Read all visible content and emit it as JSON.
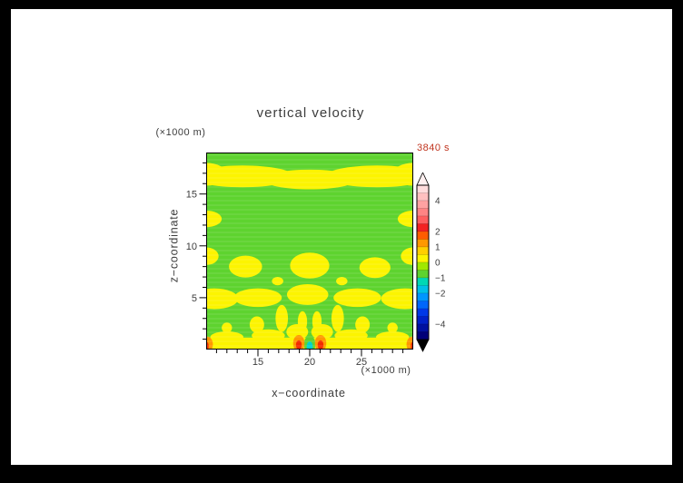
{
  "chart_data": {
    "type": "heatmap",
    "subtype": "filled-contour",
    "title": "vertical velocity",
    "time_label": "3840 s",
    "xlabel": "x−coordinate",
    "ylabel": "z−coordinate",
    "x_unit_label": "(×1000 m)",
    "y_unit_label": "(×1000 m)",
    "x_range": [
      10,
      30
    ],
    "z_range": [
      0,
      19
    ],
    "x_ticks": [
      15,
      20,
      25
    ],
    "z_ticks": [
      5,
      10,
      15
    ],
    "grid": "faint light horizontal raster lines",
    "background_color": "#5ed32f",
    "background_level": "-1 to 0",
    "palette": {
      "y": "#fcf400",
      "g": "#5ed32f",
      "o": "#ff9800",
      "r": "#f22c00",
      "c": "#00d2cc"
    },
    "levels": {
      "y": "0 to 1",
      "g": "-1 to 0",
      "o": "1 to 2",
      "r": "2 to 3",
      "c": "-2 to -1"
    },
    "regions": [
      [
        "e",
        13.5,
        16.7,
        5.0,
        1.05,
        "y"
      ],
      [
        "e",
        20.0,
        16.4,
        4.5,
        0.95,
        "y"
      ],
      [
        "e",
        26.5,
        16.7,
        5.0,
        1.05,
        "y"
      ],
      [
        "e",
        10.0,
        16.9,
        2.0,
        1.1,
        "y"
      ],
      [
        "e",
        30.0,
        16.9,
        2.0,
        1.1,
        "y"
      ],
      [
        "e",
        10.0,
        12.6,
        1.5,
        0.8,
        "y"
      ],
      [
        "e",
        30.0,
        12.6,
        1.5,
        0.8,
        "y"
      ],
      [
        "e",
        13.8,
        8.0,
        1.6,
        1.05,
        "y"
      ],
      [
        "e",
        20.0,
        8.1,
        1.9,
        1.25,
        "y"
      ],
      [
        "e",
        26.3,
        7.9,
        1.5,
        1.0,
        "y"
      ],
      [
        "e",
        10.0,
        9.0,
        1.2,
        0.85,
        "y"
      ],
      [
        "e",
        30.0,
        9.0,
        1.2,
        0.85,
        "y"
      ],
      [
        "e",
        16.9,
        6.6,
        0.55,
        0.4,
        "y"
      ],
      [
        "e",
        23.1,
        6.6,
        0.55,
        0.4,
        "y"
      ],
      [
        "e",
        10.8,
        4.9,
        2.3,
        1.0,
        "y"
      ],
      [
        "e",
        15.0,
        5.0,
        2.3,
        0.9,
        "y"
      ],
      [
        "e",
        19.8,
        5.3,
        2.0,
        1.0,
        "y"
      ],
      [
        "e",
        24.6,
        5.0,
        2.3,
        0.9,
        "y"
      ],
      [
        "e",
        29.2,
        4.9,
        2.3,
        1.0,
        "y"
      ],
      [
        "e",
        17.3,
        3.0,
        0.6,
        1.3,
        "y"
      ],
      [
        "e",
        19.3,
        2.7,
        0.45,
        1.0,
        "y"
      ],
      [
        "e",
        20.7,
        2.7,
        0.45,
        1.0,
        "y"
      ],
      [
        "e",
        22.7,
        3.0,
        0.6,
        1.3,
        "y"
      ],
      [
        "e",
        14.9,
        2.4,
        0.7,
        0.8,
        "y"
      ],
      [
        "e",
        25.1,
        2.4,
        0.7,
        0.8,
        "y"
      ],
      [
        "e",
        12.0,
        2.1,
        0.5,
        0.5,
        "y"
      ],
      [
        "e",
        28.0,
        2.1,
        0.5,
        0.5,
        "y"
      ],
      [
        "r",
        10.0,
        0.0,
        30.0,
        1.15,
        "y"
      ],
      [
        "e",
        12.0,
        1.2,
        1.6,
        0.55,
        "y"
      ],
      [
        "e",
        16.0,
        1.35,
        1.6,
        0.6,
        "y"
      ],
      [
        "e",
        18.8,
        1.7,
        1.05,
        0.75,
        "y"
      ],
      [
        "e",
        21.2,
        1.7,
        1.05,
        0.75,
        "y"
      ],
      [
        "e",
        24.0,
        1.35,
        1.6,
        0.6,
        "y"
      ],
      [
        "e",
        28.0,
        1.2,
        1.6,
        0.55,
        "y"
      ],
      [
        "e",
        20.0,
        0.5,
        0.55,
        0.85,
        "g"
      ],
      [
        "e",
        20.0,
        0.28,
        0.3,
        0.5,
        "c"
      ],
      [
        "e",
        18.95,
        0.6,
        0.55,
        0.8,
        "o"
      ],
      [
        "e",
        21.05,
        0.6,
        0.55,
        0.8,
        "o"
      ],
      [
        "e",
        10.1,
        0.5,
        0.55,
        0.75,
        "o"
      ],
      [
        "e",
        29.9,
        0.5,
        0.55,
        0.75,
        "o"
      ],
      [
        "e",
        18.95,
        0.45,
        0.28,
        0.45,
        "r"
      ],
      [
        "e",
        21.05,
        0.45,
        0.28,
        0.45,
        "r"
      ],
      [
        "e",
        10.0,
        0.35,
        0.25,
        0.4,
        "r"
      ],
      [
        "e",
        30.0,
        0.35,
        0.25,
        0.4,
        "r"
      ]
    ],
    "colorbar": {
      "range": [
        -5,
        5
      ],
      "ticks": [
        {
          "v": 4,
          "label": "4"
        },
        {
          "v": 2,
          "label": "2"
        },
        {
          "v": 1,
          "label": "1"
        },
        {
          "v": 0,
          "label": "0"
        },
        {
          "v": -1,
          "label": "−1"
        },
        {
          "v": -2,
          "label": "−2"
        },
        {
          "v": -4,
          "label": "−4"
        }
      ],
      "colors_top_to_bottom": [
        "#ffdcdc",
        "#ffc0c0",
        "#ffa2a2",
        "#ff8484",
        "#ff5f5f",
        "#f32222",
        "#ff5c00",
        "#ff9800",
        "#ffcf00",
        "#fcf400",
        "#a0e800",
        "#5ed32f",
        "#00d8b4",
        "#00c0e8",
        "#0096ff",
        "#0066fa",
        "#0038e8",
        "#0020c8",
        "#0010a0",
        "#000078"
      ],
      "over_color": "#fff0f0",
      "under_color": "#000000"
    }
  }
}
